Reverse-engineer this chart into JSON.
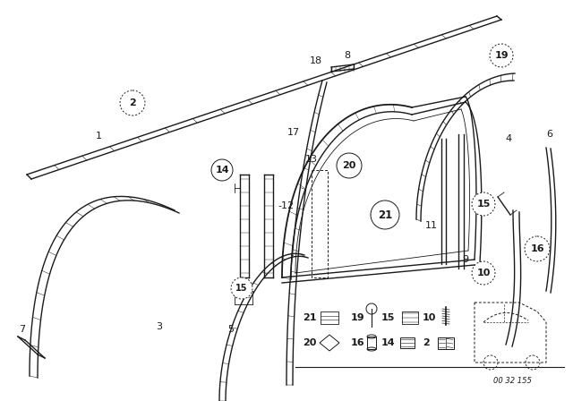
{
  "bg_color": "#ffffff",
  "line_color": "#1a1a1a",
  "diagram_code": "00 32 155",
  "fig_w": 6.4,
  "fig_h": 4.48,
  "dpi": 100
}
